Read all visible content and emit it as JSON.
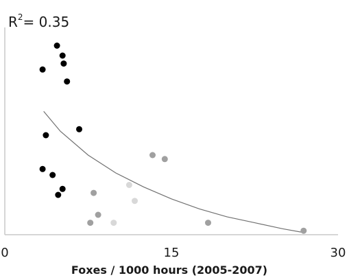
{
  "chart_data": {
    "type": "scatter",
    "title": "",
    "annotation": {
      "prefix": "R",
      "superscript": "2",
      "suffix": "= 0.35"
    },
    "xlabel": "Foxes / 1000 hours (2005-2007)",
    "ylabel": "",
    "xlim": [
      0,
      30
    ],
    "ylim": [
      0,
      1
    ],
    "xticks": [
      0,
      15,
      30
    ],
    "xtick_labels": [
      "0",
      "15",
      "30"
    ],
    "grid": false,
    "legend": "none",
    "colors": {
      "axis": "#c8c8c8",
      "trend": "#707070",
      "dark_points": "#000000",
      "light_points": "#a0a0a0",
      "lighter_points": "#d8d8d8"
    },
    "series": [
      {
        "group": "dark",
        "color": "#000000",
        "x": [
          4.7,
          5.2,
          5.3,
          3.4,
          5.6,
          6.7,
          3.7,
          3.4,
          4.3,
          5.2,
          4.8
        ],
        "y": [
          0.95,
          0.9,
          0.86,
          0.83,
          0.77,
          0.53,
          0.5,
          0.33,
          0.3,
          0.23,
          0.2
        ]
      },
      {
        "group": "mid",
        "color": "#a0a0a0",
        "x": [
          13.3,
          14.4,
          8.0,
          8.4,
          7.7,
          18.3,
          26.9
        ],
        "y": [
          0.4,
          0.38,
          0.21,
          0.1,
          0.06,
          0.06,
          0.02
        ]
      },
      {
        "group": "light",
        "color": "#d8d8d8",
        "x": [
          11.2,
          11.7,
          9.8
        ],
        "y": [
          0.25,
          0.17,
          0.06
        ]
      }
    ],
    "trendline": {
      "type": "logarithmic",
      "x": [
        3.5,
        5,
        7.5,
        10,
        12.5,
        15,
        17.5,
        20,
        22.5,
        25,
        27
      ],
      "y": [
        0.62,
        0.52,
        0.4,
        0.31,
        0.24,
        0.18,
        0.13,
        0.09,
        0.06,
        0.03,
        0.01
      ]
    }
  }
}
